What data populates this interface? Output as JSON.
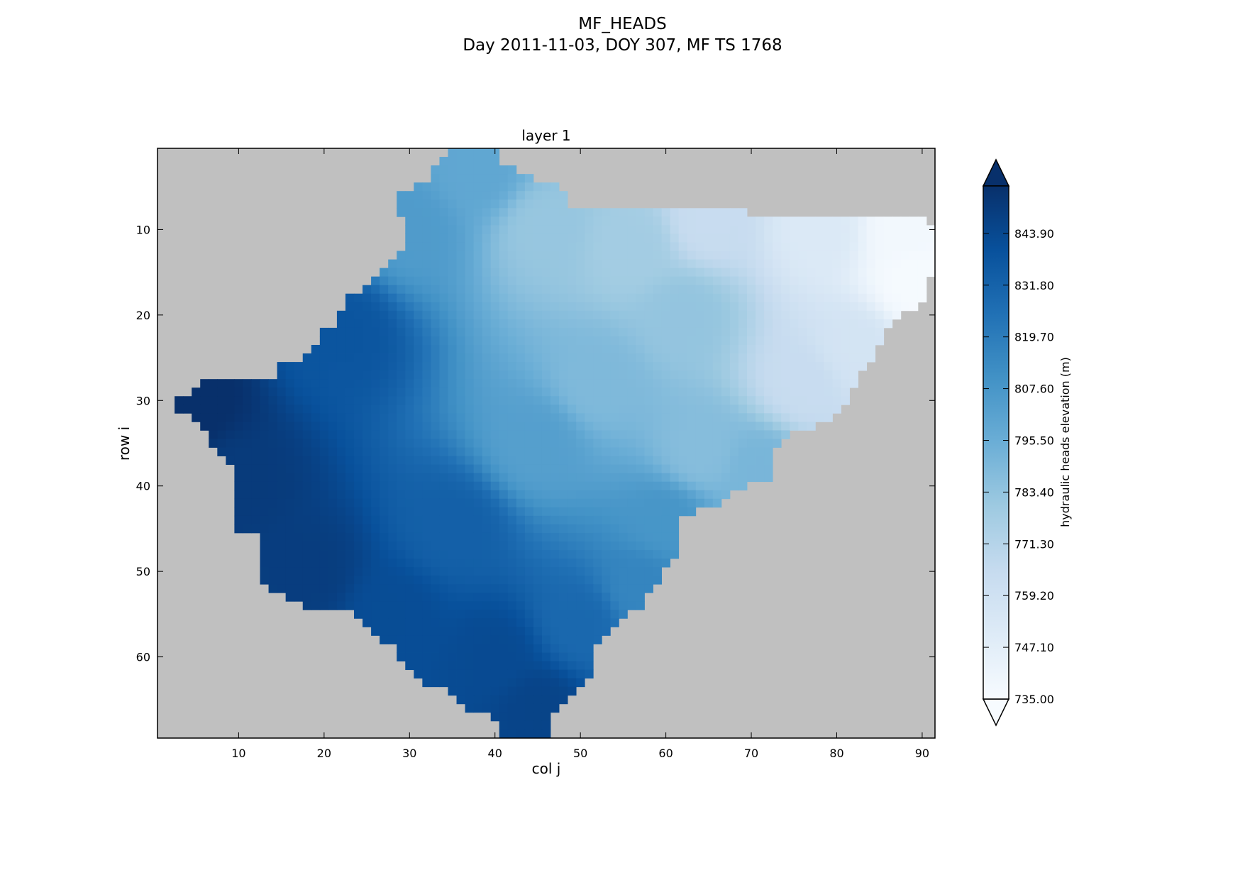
{
  "figure": {
    "title": "MF_HEADS",
    "subtitle": "Day 2011-11-03, DOY 307, MF TS 1768"
  },
  "chart_data": {
    "type": "heatmap",
    "title": "layer 1",
    "xlabel": "col j",
    "ylabel": "row i",
    "xlim": [
      0.5,
      91.5
    ],
    "ylim": [
      69.5,
      0.5
    ],
    "y_inverted": true,
    "x_ticks": [
      10,
      20,
      30,
      40,
      50,
      60,
      70,
      80,
      90
    ],
    "y_ticks": [
      10,
      20,
      30,
      40,
      50,
      60
    ],
    "grid": false,
    "colormap": "Blues",
    "masked_color": "#c0c0c0",
    "value_range": [
      735.0,
      855.0
    ],
    "field_anchors": [
      {
        "col": 4,
        "row": 30,
        "value": 856
      },
      {
        "col": 10,
        "row": 40,
        "value": 850
      },
      {
        "col": 18,
        "row": 50,
        "value": 849
      },
      {
        "col": 40,
        "row": 60,
        "value": 843
      },
      {
        "col": 45,
        "row": 66,
        "value": 846
      },
      {
        "col": 22,
        "row": 22,
        "value": 838
      },
      {
        "col": 30,
        "row": 10,
        "value": 805
      },
      {
        "col": 38,
        "row": 3,
        "value": 799
      },
      {
        "col": 46,
        "row": 10,
        "value": 782
      },
      {
        "col": 56,
        "row": 12,
        "value": 778
      },
      {
        "col": 62,
        "row": 20,
        "value": 783
      },
      {
        "col": 65,
        "row": 9,
        "value": 764
      },
      {
        "col": 78,
        "row": 10,
        "value": 752
      },
      {
        "col": 88,
        "row": 10,
        "value": 738
      },
      {
        "col": 89,
        "row": 16,
        "value": 736
      },
      {
        "col": 76,
        "row": 28,
        "value": 764
      },
      {
        "col": 64,
        "row": 36,
        "value": 787
      },
      {
        "col": 52,
        "row": 28,
        "value": 789
      },
      {
        "col": 45,
        "row": 35,
        "value": 803
      },
      {
        "col": 60,
        "row": 44,
        "value": 808
      },
      {
        "col": 57,
        "row": 52,
        "value": 816
      },
      {
        "col": 35,
        "row": 45,
        "value": 833
      },
      {
        "col": 50,
        "row": 56,
        "value": 829
      },
      {
        "col": 28,
        "row": 55,
        "value": 842
      },
      {
        "col": 71,
        "row": 38,
        "value": 791
      },
      {
        "col": 82,
        "row": 24,
        "value": 757
      }
    ],
    "active_domain_by_row": {
      "rows": [
        1,
        2,
        3,
        4,
        5,
        6,
        7,
        8,
        9,
        10,
        11,
        12,
        13,
        14,
        15,
        16,
        17,
        18,
        19,
        20,
        21,
        22,
        23,
        24,
        25,
        26,
        27,
        28,
        29,
        30,
        31,
        32,
        33,
        34,
        35,
        36,
        37,
        38,
        39,
        40,
        41,
        42,
        43,
        44,
        45,
        46,
        47,
        48,
        49,
        50,
        51,
        52,
        53,
        54,
        55,
        56,
        57,
        58,
        59,
        60,
        61,
        62,
        63,
        64,
        65,
        66,
        67,
        68,
        69
      ],
      "left_col": [
        35,
        34,
        33,
        33,
        31,
        29,
        29,
        29,
        30,
        30,
        30,
        30,
        29,
        28,
        27,
        26,
        25,
        23,
        23,
        22,
        22,
        20,
        20,
        19,
        18,
        15,
        15,
        6,
        5,
        3,
        3,
        5,
        6,
        7,
        7,
        8,
        9,
        10,
        10,
        10,
        10,
        10,
        10,
        10,
        10,
        13,
        13,
        13,
        13,
        13,
        13,
        14,
        16,
        18,
        24,
        25,
        26,
        27,
        29,
        29,
        30,
        31,
        32,
        35,
        36,
        37,
        40,
        41,
        41
      ],
      "right_col": [
        40,
        40,
        42,
        44,
        47,
        48,
        48,
        69,
        90,
        91,
        91,
        91,
        91,
        91,
        91,
        90,
        90,
        90,
        89,
        87,
        86,
        85,
        85,
        84,
        84,
        83,
        82,
        82,
        81,
        81,
        80,
        79,
        77,
        74,
        73,
        72,
        72,
        72,
        72,
        69,
        67,
        66,
        63,
        61,
        61,
        61,
        61,
        61,
        60,
        59,
        59,
        58,
        57,
        57,
        55,
        54,
        53,
        52,
        51,
        51,
        51,
        51,
        50,
        49,
        48,
        47,
        46,
        46,
        46
      ]
    },
    "colorbar": {
      "label": "hydraulic heads elevation (m)",
      "ticks": [
        "735.00",
        "747.10",
        "759.20",
        "771.30",
        "783.40",
        "795.50",
        "807.60",
        "819.70",
        "831.80",
        "843.90"
      ],
      "extend": "both"
    }
  }
}
